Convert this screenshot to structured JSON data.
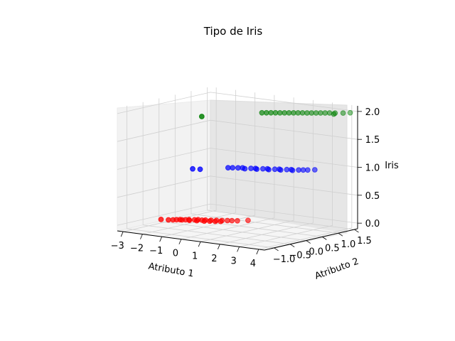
{
  "chart_data": {
    "type": "scatter",
    "projection": "3d",
    "title": "Tipo de Iris",
    "xlabel": "Atributo 1",
    "ylabel": "Atributo 2",
    "zlabel": "Iris",
    "xticks": [
      "−3",
      "−2",
      "−1",
      "0",
      "1",
      "2",
      "3",
      "4"
    ],
    "yticks": [
      "−1.0",
      "−0.5",
      "0.0",
      "0.5",
      "1.0",
      "1.5"
    ],
    "zticks": [
      "0.0",
      "0.5",
      "1.0",
      "1.5",
      "2.0"
    ],
    "xlim": [
      -3.3,
      4.3
    ],
    "ylim": [
      -1.3,
      1.6
    ],
    "zlim": [
      -0.1,
      2.1
    ],
    "grid": true,
    "series": [
      {
        "color": "#ff0000",
        "z": 0,
        "x": [
          -2.7,
          -2.4,
          -2.25,
          -2.15,
          -2.05,
          -1.95,
          -1.85,
          -1.75,
          -1.65,
          -1.55,
          -1.45,
          -1.35,
          -1.25,
          -1.15,
          -1.05,
          -0.95,
          -0.85,
          -0.75,
          -0.65,
          -0.55,
          -0.45,
          -0.35,
          -0.2,
          0.0,
          0.3
        ],
        "y": [
          -0.3,
          -0.25,
          -0.2,
          -0.15,
          -0.1,
          -0.1,
          -0.05,
          0.0,
          -0.05,
          0.05,
          0.1,
          0.0,
          0.1,
          0.15,
          0.05,
          0.2,
          0.1,
          0.25,
          0.15,
          0.3,
          0.2,
          0.35,
          0.4,
          0.45,
          0.6
        ]
      },
      {
        "color": "#0000ff",
        "z": 1,
        "x": [
          -0.9,
          -0.6,
          0.1,
          0.25,
          0.45,
          0.6,
          0.8,
          0.95,
          1.1,
          1.25,
          1.4,
          1.55,
          1.7,
          1.85,
          2.0,
          2.15,
          2.3,
          2.45,
          2.6,
          2.75,
          2.9,
          3.05,
          3.25
        ],
        "y": [
          -0.4,
          -0.35,
          0.1,
          0.15,
          0.2,
          0.25,
          0.2,
          0.3,
          0.35,
          0.3,
          0.4,
          0.45,
          0.4,
          0.5,
          0.55,
          0.5,
          0.6,
          0.65,
          0.6,
          0.7,
          0.75,
          0.8,
          0.9
        ]
      },
      {
        "color": "#008000",
        "z": 2,
        "x": [
          -0.1,
          1.35,
          1.5,
          1.65,
          1.8,
          1.95,
          2.1,
          2.25,
          2.4,
          2.55,
          2.7,
          2.85,
          3.0,
          3.15,
          3.3,
          3.45,
          3.6,
          3.8,
          3.9,
          4.05,
          4.25
        ],
        "y": [
          -0.6,
          0.4,
          0.45,
          0.5,
          0.55,
          0.6,
          0.65,
          0.7,
          0.75,
          0.8,
          0.85,
          0.9,
          0.95,
          1.0,
          1.05,
          1.1,
          1.15,
          1.2,
          1.1,
          1.3,
          1.4
        ]
      }
    ]
  }
}
